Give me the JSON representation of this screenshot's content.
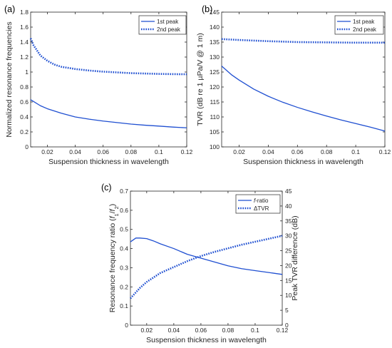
{
  "colors": {
    "series": "#1f4fd1",
    "axis": "#262626"
  },
  "chart_data": [
    {
      "id": "a",
      "panel_label": "(a)",
      "type": "line",
      "xlabel": "Suspension thickness in wavelength",
      "ylabel": "Normalized resonance frequencies",
      "xlim": [
        0.008,
        0.12
      ],
      "ylim": [
        0,
        1.8
      ],
      "xticks": [
        0.02,
        0.04,
        0.06,
        0.08,
        0.1,
        0.12
      ],
      "xtick_labels": [
        "0.02",
        "0.04",
        "0.06",
        "0.08",
        "0.1",
        "0.12"
      ],
      "yticks": [
        0,
        0.2,
        0.4,
        0.6,
        0.8,
        1,
        1.2,
        1.4,
        1.6,
        1.8
      ],
      "ytick_labels": [
        "0",
        "0.2",
        "0.4",
        "0.6",
        "0.8",
        "1",
        "1.2",
        "1.4",
        "1.6",
        "1.8"
      ],
      "legend_position": "top-right",
      "series": [
        {
          "name": "1st peak",
          "style": "solid",
          "x": [
            0.008,
            0.015,
            0.02,
            0.03,
            0.04,
            0.05,
            0.06,
            0.07,
            0.08,
            0.09,
            0.1,
            0.11,
            0.12
          ],
          "y": [
            0.63,
            0.55,
            0.51,
            0.45,
            0.4,
            0.37,
            0.345,
            0.325,
            0.305,
            0.29,
            0.278,
            0.265,
            0.255
          ]
        },
        {
          "name": "2nd peak",
          "style": "dotted",
          "x": [
            0.008,
            0.01,
            0.015,
            0.02,
            0.025,
            0.03,
            0.04,
            0.05,
            0.06,
            0.07,
            0.08,
            0.09,
            0.1,
            0.11,
            0.12
          ],
          "y": [
            1.45,
            1.36,
            1.22,
            1.15,
            1.1,
            1.07,
            1.04,
            1.02,
            1.005,
            0.995,
            0.985,
            0.98,
            0.975,
            0.972,
            0.97
          ]
        }
      ]
    },
    {
      "id": "b",
      "panel_label": "(b)",
      "type": "line",
      "xlabel": "Suspension thickness in wavelength",
      "ylabel": "TVR (dB re 1 µPa/V @ 1 m)",
      "xlim": [
        0.008,
        0.12
      ],
      "ylim": [
        100,
        145
      ],
      "xticks": [
        0.02,
        0.04,
        0.06,
        0.08,
        0.1,
        0.12
      ],
      "xtick_labels": [
        "0.02",
        "0.04",
        "0.06",
        "0.08",
        "0.1",
        "0.12"
      ],
      "yticks": [
        100,
        105,
        110,
        115,
        120,
        125,
        130,
        135,
        140,
        145
      ],
      "ytick_labels": [
        "100",
        "105",
        "110",
        "115",
        "120",
        "125",
        "130",
        "135",
        "140",
        "145"
      ],
      "legend_position": "top-right",
      "series": [
        {
          "name": "1st peak",
          "style": "solid",
          "x": [
            0.008,
            0.015,
            0.02,
            0.03,
            0.04,
            0.05,
            0.06,
            0.07,
            0.08,
            0.09,
            0.1,
            0.11,
            0.12
          ],
          "y": [
            127,
            124,
            122.3,
            119.3,
            116.9,
            114.9,
            113.2,
            111.7,
            110.3,
            109.0,
            107.8,
            106.6,
            105.3
          ]
        },
        {
          "name": "2nd peak",
          "style": "dotted",
          "x": [
            0.008,
            0.02,
            0.04,
            0.06,
            0.08,
            0.1,
            0.12
          ],
          "y": [
            136,
            135.7,
            135.3,
            135.0,
            134.9,
            134.8,
            134.8
          ]
        }
      ]
    },
    {
      "id": "c",
      "panel_label": "(c)",
      "type": "line",
      "xlabel": "Suspension thickness in wavelength",
      "ylabel_left": "Resonance frequency ratio (f1/f2)",
      "ylabel_left_parts": [
        "Resonance frequency ratio (",
        "f",
        "1",
        "/",
        "f",
        "2",
        ")"
      ],
      "ylabel_right": "Peak TVR difference (dB)",
      "xlim": [
        0.008,
        0.12
      ],
      "ylim_left": [
        0,
        0.7
      ],
      "ylim_right": [
        0,
        45
      ],
      "xticks": [
        0.02,
        0.04,
        0.06,
        0.08,
        0.1,
        0.12
      ],
      "xtick_labels": [
        "0.02",
        "0.04",
        "0.06",
        "0.08",
        "0.1",
        "0.12"
      ],
      "yticks_left": [
        0,
        0.1,
        0.2,
        0.3,
        0.4,
        0.5,
        0.6,
        0.7
      ],
      "ytick_labels_left": [
        "0",
        "0.1",
        "0.2",
        "0.3",
        "0.4",
        "0.5",
        "0.6",
        "0.7"
      ],
      "yticks_right": [
        0,
        5,
        10,
        15,
        20,
        25,
        30,
        35,
        40,
        45
      ],
      "ytick_labels_right": [
        "0",
        "5",
        "10",
        "15",
        "20",
        "25",
        "30",
        "35",
        "40",
        "45"
      ],
      "legend_position": "top-right",
      "series": [
        {
          "name": "f-ratio",
          "legend_italic": "f",
          "legend_rest": "-ratio",
          "style": "solid",
          "axis": "left",
          "x": [
            0.008,
            0.012,
            0.015,
            0.02,
            0.025,
            0.03,
            0.04,
            0.05,
            0.06,
            0.07,
            0.08,
            0.09,
            0.1,
            0.11,
            0.12
          ],
          "y": [
            0.435,
            0.455,
            0.455,
            0.452,
            0.44,
            0.425,
            0.4,
            0.37,
            0.35,
            0.33,
            0.31,
            0.295,
            0.285,
            0.275,
            0.265
          ]
        },
        {
          "name": "ΔTVR",
          "legend_italic": "",
          "legend_rest": "ΔTVR",
          "style": "dotted",
          "axis": "right",
          "x": [
            0.008,
            0.015,
            0.02,
            0.03,
            0.04,
            0.05,
            0.06,
            0.07,
            0.08,
            0.09,
            0.1,
            0.11,
            0.12
          ],
          "y": [
            9.0,
            12.5,
            14.5,
            17.5,
            19.5,
            21.5,
            23.2,
            24.6,
            25.8,
            27.0,
            28.0,
            29.0,
            30.0
          ]
        }
      ]
    }
  ]
}
